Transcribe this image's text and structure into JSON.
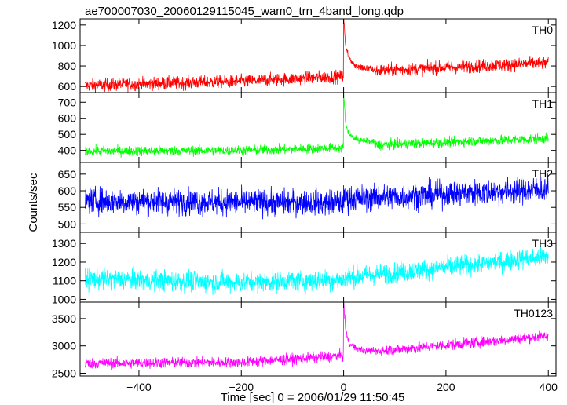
{
  "chart_data": {
    "type": "line",
    "title": "ae700007030_20060129115045_wam0_trn_4band_long.qdp",
    "xlabel": "Time [sec] 0 = 2006/01/29 11:50:45",
    "ylabel": "Counts/sec",
    "xlim": [
      -515,
      415
    ],
    "x_ticks": [
      -400,
      -200,
      0,
      200,
      400
    ],
    "x_tick_labels": [
      "−400",
      "−200",
      "0",
      "200",
      "400"
    ],
    "x_range_data": [
      -505,
      400
    ],
    "event_time": 0,
    "panels": [
      {
        "name": "TH0",
        "color": "#ff0000",
        "ylim": [
          540,
          1260
        ],
        "yticks": [
          600,
          800,
          1000,
          1200
        ],
        "baseline": [
          [
            -505,
            610
          ],
          [
            -200,
            650
          ],
          [
            -1,
            700
          ],
          [
            0,
            740
          ],
          [
            400,
            830
          ]
        ],
        "noise": 45,
        "spike": [
          [
            0,
            1260
          ],
          [
            4,
            1000
          ],
          [
            10,
            880
          ],
          [
            25,
            790
          ],
          [
            60,
            760
          ]
        ]
      },
      {
        "name": "TH1",
        "color": "#00ff00",
        "ylim": [
          325,
          760
        ],
        "yticks": [
          400,
          500,
          600,
          700
        ],
        "baseline": [
          [
            -505,
            395
          ],
          [
            -200,
            400
          ],
          [
            -1,
            415
          ],
          [
            0,
            425
          ],
          [
            400,
            475
          ]
        ],
        "noise": 22,
        "spike": [
          [
            0,
            750
          ],
          [
            4,
            570
          ],
          [
            10,
            500
          ],
          [
            25,
            470
          ],
          [
            60,
            450
          ]
        ]
      },
      {
        "name": "TH2",
        "color": "#0000ff",
        "ylim": [
          475,
          685
        ],
        "yticks": [
          500,
          550,
          600,
          650
        ],
        "baseline": [
          [
            -505,
            570
          ],
          [
            -200,
            565
          ],
          [
            -1,
            565
          ],
          [
            0,
            575
          ],
          [
            400,
            605
          ]
        ],
        "noise": 28,
        "spike": []
      },
      {
        "name": "TH3",
        "color": "#00ffff",
        "ylim": [
          985,
          1360
        ],
        "yticks": [
          1000,
          1100,
          1200,
          1300
        ],
        "baseline": [
          [
            -505,
            1110
          ],
          [
            -200,
            1090
          ],
          [
            -1,
            1105
          ],
          [
            0,
            1115
          ],
          [
            400,
            1230
          ]
        ],
        "noise": 40,
        "spike": []
      },
      {
        "name": "TH0123",
        "color": "#ff00ff",
        "ylim": [
          2450,
          3800
        ],
        "yticks": [
          2500,
          3000,
          3500
        ],
        "baseline": [
          [
            -505,
            2680
          ],
          [
            -200,
            2700
          ],
          [
            -1,
            2820
          ],
          [
            0,
            2850
          ],
          [
            400,
            3180
          ]
        ],
        "noise": 70,
        "spike": [
          [
            0,
            3800
          ],
          [
            4,
            3300
          ],
          [
            10,
            3050
          ],
          [
            25,
            2950
          ],
          [
            60,
            2900
          ]
        ]
      }
    ]
  }
}
